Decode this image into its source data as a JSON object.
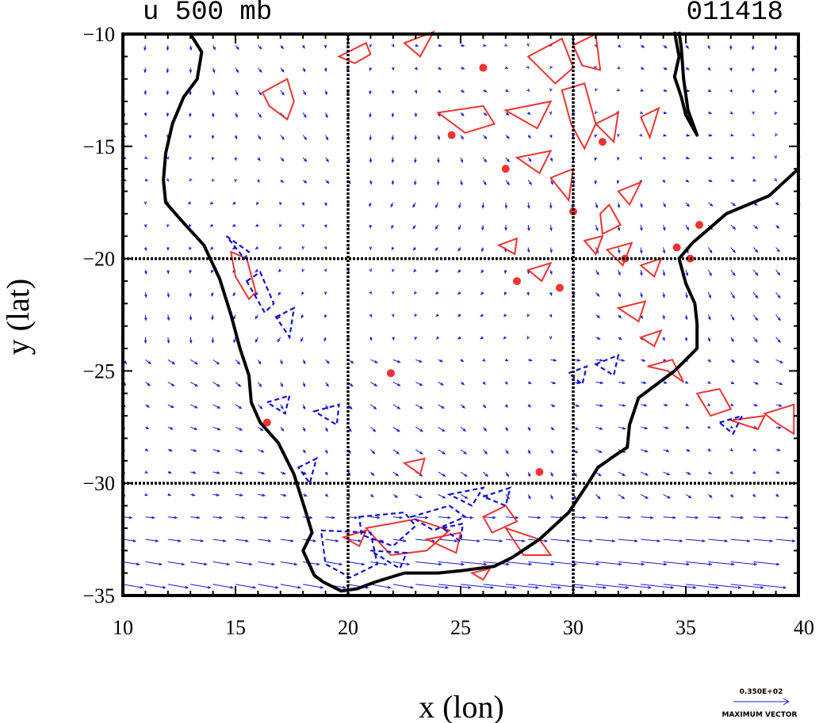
{
  "title": {
    "variable": "u 500 mb",
    "date_code": "011418"
  },
  "axes": {
    "xlabel": "x (lon)",
    "ylabel": "y (lat)",
    "xlim": [
      10,
      40
    ],
    "ylim": [
      -35,
      -10
    ],
    "xticks": [
      "10",
      "15",
      "20",
      "25",
      "30",
      "35",
      "40"
    ],
    "yticks": [
      "−10",
      "−15",
      "−20",
      "−25",
      "−30",
      "−35"
    ],
    "grid_lon": [
      20,
      30
    ],
    "grid_lat": [
      -20,
      -30
    ]
  },
  "legend": {
    "value": "0.350E+02",
    "label": "MAXIMUM VECTOR"
  },
  "colors": {
    "positive_contour": "#ee3333",
    "negative_contour": "#1010cc",
    "vector": "#1a1ad8",
    "coast": "#000000"
  },
  "chart_data": {
    "type": "contour+vector map",
    "title": "u 500 mb",
    "region": "Southern Africa",
    "xlabel": "x (lon)",
    "ylabel": "y (lat)",
    "xlim": [
      10,
      40
    ],
    "ylim": [
      -35,
      -10
    ],
    "coastline_lonlat": [
      [
        13.0,
        -10.0
      ],
      [
        13.5,
        -10.8
      ],
      [
        13.3,
        -12.0
      ],
      [
        12.7,
        -12.8
      ],
      [
        12.2,
        -14.0
      ],
      [
        11.9,
        -15.3
      ],
      [
        11.8,
        -16.5
      ],
      [
        11.9,
        -17.5
      ],
      [
        12.6,
        -18.3
      ],
      [
        13.6,
        -19.4
      ],
      [
        14.3,
        -20.9
      ],
      [
        14.8,
        -22.5
      ],
      [
        15.2,
        -24.0
      ],
      [
        15.6,
        -25.2
      ],
      [
        15.7,
        -26.4
      ],
      [
        16.1,
        -27.3
      ],
      [
        16.9,
        -28.2
      ],
      [
        17.6,
        -29.6
      ],
      [
        18.1,
        -31.2
      ],
      [
        18.4,
        -32.2
      ],
      [
        18.0,
        -33.0
      ],
      [
        18.5,
        -34.1
      ],
      [
        18.9,
        -34.4
      ],
      [
        19.7,
        -34.8
      ],
      [
        20.4,
        -34.7
      ],
      [
        21.2,
        -34.4
      ],
      [
        22.5,
        -34.0
      ],
      [
        24.0,
        -34.0
      ],
      [
        25.0,
        -33.9
      ],
      [
        26.5,
        -33.7
      ],
      [
        27.3,
        -33.3
      ],
      [
        28.5,
        -32.5
      ],
      [
        29.8,
        -31.3
      ],
      [
        30.6,
        -30.1
      ],
      [
        31.1,
        -29.3
      ],
      [
        31.8,
        -28.8
      ],
      [
        32.4,
        -28.4
      ],
      [
        32.5,
        -27.4
      ],
      [
        32.9,
        -26.2
      ],
      [
        34.5,
        -25.0
      ],
      [
        35.5,
        -24.0
      ],
      [
        35.5,
        -22.9
      ],
      [
        35.4,
        -22.0
      ],
      [
        35.0,
        -21.1
      ],
      [
        34.7,
        -20.0
      ],
      [
        35.3,
        -19.3
      ],
      [
        36.8,
        -18.0
      ],
      [
        38.7,
        -17.2
      ],
      [
        40.0,
        -16.0
      ]
    ],
    "lake_outline_lonlat": [
      [
        34.5,
        -9.9
      ],
      [
        34.7,
        -11.0
      ],
      [
        34.5,
        -11.9
      ],
      [
        34.8,
        -12.8
      ],
      [
        35.0,
        -13.6
      ],
      [
        35.5,
        -14.5
      ],
      [
        35.1,
        -13.4
      ],
      [
        34.9,
        -12.0
      ],
      [
        34.8,
        -10.6
      ],
      [
        34.7,
        -9.9
      ]
    ],
    "positive_contours_lonlat": [
      [
        [
          14.8,
          -19.7
        ],
        [
          15.5,
          -20.0
        ],
        [
          15.9,
          -21.5
        ],
        [
          15.6,
          -21.8
        ],
        [
          15.0,
          -20.8
        ],
        [
          14.8,
          -19.7
        ]
      ],
      [
        [
          16.2,
          -12.6
        ],
        [
          17.3,
          -12.0
        ],
        [
          17.6,
          -13.0
        ],
        [
          17.3,
          -13.8
        ],
        [
          16.5,
          -13.2
        ],
        [
          16.2,
          -12.6
        ]
      ],
      [
        [
          19.6,
          -11.0
        ],
        [
          20.8,
          -10.4
        ],
        [
          21.0,
          -10.9
        ],
        [
          20.3,
          -11.3
        ],
        [
          19.6,
          -11.0
        ]
      ],
      [
        [
          22.5,
          -10.4
        ],
        [
          23.8,
          -9.9
        ],
        [
          23.2,
          -11.0
        ],
        [
          22.5,
          -10.4
        ]
      ],
      [
        [
          24.0,
          -13.5
        ],
        [
          26.0,
          -13.2
        ],
        [
          26.5,
          -14.0
        ],
        [
          25.2,
          -14.4
        ],
        [
          24.0,
          -13.5
        ]
      ],
      [
        [
          27.0,
          -13.4
        ],
        [
          29.0,
          -13.0
        ],
        [
          28.4,
          -14.2
        ],
        [
          27.0,
          -13.4
        ]
      ],
      [
        [
          28.0,
          -11.0
        ],
        [
          29.5,
          -10.2
        ],
        [
          30.0,
          -11.5
        ],
        [
          29.2,
          -12.2
        ],
        [
          28.0,
          -11.0
        ]
      ],
      [
        [
          30.0,
          -10.5
        ],
        [
          31.0,
          -10.0
        ],
        [
          31.2,
          -11.6
        ],
        [
          30.4,
          -11.4
        ],
        [
          30.0,
          -10.5
        ]
      ],
      [
        [
          29.5,
          -12.5
        ],
        [
          30.5,
          -12.2
        ],
        [
          31.0,
          -14.0
        ],
        [
          30.5,
          -15.1
        ],
        [
          29.9,
          -14.0
        ],
        [
          29.5,
          -12.5
        ]
      ],
      [
        [
          27.5,
          -15.5
        ],
        [
          29.0,
          -15.2
        ],
        [
          28.5,
          -16.2
        ],
        [
          27.5,
          -15.5
        ]
      ],
      [
        [
          29.0,
          -16.4
        ],
        [
          30.0,
          -16.0
        ],
        [
          29.8,
          -17.4
        ],
        [
          29.0,
          -16.4
        ]
      ],
      [
        [
          31.0,
          -14.0
        ],
        [
          32.0,
          -13.5
        ],
        [
          31.8,
          -14.8
        ],
        [
          31.0,
          -14.0
        ]
      ],
      [
        [
          33.0,
          -13.7
        ],
        [
          33.8,
          -13.3
        ],
        [
          33.4,
          -14.6
        ],
        [
          33.0,
          -13.7
        ]
      ],
      [
        [
          32.0,
          -17.0
        ],
        [
          33.0,
          -16.6
        ],
        [
          32.5,
          -17.6
        ],
        [
          32.0,
          -17.0
        ]
      ],
      [
        [
          31.2,
          -18.0
        ],
        [
          31.6,
          -17.6
        ],
        [
          32.1,
          -18.5
        ],
        [
          31.3,
          -18.9
        ],
        [
          31.2,
          -18.0
        ]
      ],
      [
        [
          30.5,
          -19.2
        ],
        [
          31.3,
          -19.0
        ],
        [
          31.0,
          -19.8
        ],
        [
          30.5,
          -19.2
        ]
      ],
      [
        [
          26.7,
          -19.4
        ],
        [
          27.5,
          -19.1
        ],
        [
          27.4,
          -19.8
        ],
        [
          26.7,
          -19.4
        ]
      ],
      [
        [
          28.0,
          -20.5
        ],
        [
          29.0,
          -20.2
        ],
        [
          28.6,
          -21.0
        ],
        [
          28.0,
          -20.5
        ]
      ],
      [
        [
          31.5,
          -19.6
        ],
        [
          32.6,
          -19.3
        ],
        [
          32.2,
          -20.3
        ],
        [
          31.5,
          -19.6
        ]
      ],
      [
        [
          33.0,
          -20.3
        ],
        [
          33.9,
          -20.0
        ],
        [
          33.6,
          -20.8
        ],
        [
          33.0,
          -20.3
        ]
      ],
      [
        [
          32.0,
          -22.2
        ],
        [
          33.2,
          -21.9
        ],
        [
          32.9,
          -22.8
        ],
        [
          32.0,
          -22.2
        ]
      ],
      [
        [
          33.3,
          -24.8
        ],
        [
          34.4,
          -24.5
        ],
        [
          34.9,
          -25.5
        ],
        [
          34.2,
          -25.0
        ],
        [
          33.3,
          -24.8
        ]
      ],
      [
        [
          33.0,
          -23.5
        ],
        [
          33.9,
          -23.2
        ],
        [
          33.6,
          -23.9
        ],
        [
          33.0,
          -23.5
        ]
      ],
      [
        [
          35.5,
          -26.0
        ],
        [
          36.5,
          -25.8
        ],
        [
          37.0,
          -26.7
        ],
        [
          36.1,
          -27.0
        ],
        [
          35.5,
          -26.0
        ]
      ],
      [
        [
          37.0,
          -27.2
        ],
        [
          38.5,
          -27.0
        ],
        [
          38.2,
          -27.6
        ],
        [
          37.0,
          -27.2
        ]
      ],
      [
        [
          38.5,
          -26.9
        ],
        [
          39.8,
          -26.5
        ],
        [
          39.8,
          -27.8
        ],
        [
          39.0,
          -27.3
        ],
        [
          38.5,
          -26.9
        ]
      ],
      [
        [
          22.5,
          -29.1
        ],
        [
          23.4,
          -28.9
        ],
        [
          23.2,
          -29.6
        ],
        [
          22.5,
          -29.1
        ]
      ],
      [
        [
          20.8,
          -32.0
        ],
        [
          23.0,
          -31.6
        ],
        [
          24.5,
          -32.1
        ],
        [
          23.5,
          -33.0
        ],
        [
          21.9,
          -33.2
        ],
        [
          20.8,
          -32.0
        ]
      ],
      [
        [
          23.5,
          -32.5
        ],
        [
          25.0,
          -32.2
        ],
        [
          24.8,
          -33.1
        ],
        [
          23.5,
          -32.5
        ]
      ],
      [
        [
          26.0,
          -31.5
        ],
        [
          27.0,
          -31.0
        ],
        [
          27.5,
          -31.7
        ],
        [
          26.4,
          -32.2
        ],
        [
          26.0,
          -31.5
        ]
      ],
      [
        [
          27.0,
          -32.0
        ],
        [
          28.5,
          -32.5
        ],
        [
          29.0,
          -33.2
        ],
        [
          27.8,
          -33.2
        ],
        [
          27.0,
          -32.0
        ]
      ],
      [
        [
          19.8,
          -32.4
        ],
        [
          20.8,
          -32.1
        ],
        [
          20.5,
          -32.8
        ],
        [
          19.8,
          -32.4
        ]
      ],
      [
        [
          25.5,
          -34.0
        ],
        [
          26.3,
          -33.8
        ],
        [
          26.0,
          -34.3
        ],
        [
          25.5,
          -34.0
        ]
      ]
    ],
    "negative_contours_lonlat": [
      [
        [
          14.6,
          -19.0
        ],
        [
          15.6,
          -19.7
        ],
        [
          15.4,
          -20.0
        ],
        [
          14.6,
          -19.0
        ]
      ],
      [
        [
          15.5,
          -21.0
        ],
        [
          16.1,
          -20.6
        ],
        [
          16.7,
          -22.0
        ],
        [
          16.3,
          -22.4
        ],
        [
          15.5,
          -21.0
        ]
      ],
      [
        [
          16.8,
          -22.6
        ],
        [
          17.6,
          -22.2
        ],
        [
          17.4,
          -23.5
        ],
        [
          16.8,
          -22.6
        ]
      ],
      [
        [
          16.4,
          -26.4
        ],
        [
          17.4,
          -26.1
        ],
        [
          17.2,
          -26.9
        ],
        [
          16.4,
          -26.4
        ]
      ],
      [
        [
          18.5,
          -26.8
        ],
        [
          19.6,
          -26.5
        ],
        [
          19.5,
          -27.4
        ],
        [
          18.5,
          -26.8
        ]
      ],
      [
        [
          17.8,
          -29.3
        ],
        [
          18.6,
          -28.9
        ],
        [
          18.3,
          -30.0
        ],
        [
          17.8,
          -29.3
        ]
      ],
      [
        [
          31.0,
          -24.7
        ],
        [
          32.0,
          -24.3
        ],
        [
          31.8,
          -25.2
        ],
        [
          31.0,
          -24.7
        ]
      ],
      [
        [
          29.8,
          -25.1
        ],
        [
          30.6,
          -24.8
        ],
        [
          30.4,
          -25.6
        ],
        [
          29.8,
          -25.1
        ]
      ],
      [
        [
          36.5,
          -27.3
        ],
        [
          37.5,
          -27.0
        ],
        [
          37.1,
          -27.8
        ],
        [
          36.5,
          -27.3
        ]
      ],
      [
        [
          18.8,
          -32.1
        ],
        [
          21.0,
          -32.2
        ],
        [
          21.3,
          -33.6
        ],
        [
          20.1,
          -34.2
        ],
        [
          19.0,
          -33.6
        ],
        [
          18.8,
          -32.1
        ]
      ],
      [
        [
          20.5,
          -31.5
        ],
        [
          22.5,
          -31.3
        ],
        [
          23.0,
          -31.9
        ],
        [
          22.0,
          -32.8
        ],
        [
          20.6,
          -32.3
        ],
        [
          20.5,
          -31.5
        ]
      ],
      [
        [
          22.8,
          -31.5
        ],
        [
          24.5,
          -31.0
        ],
        [
          25.2,
          -31.5
        ],
        [
          23.8,
          -32.1
        ],
        [
          22.8,
          -31.5
        ]
      ],
      [
        [
          24.5,
          -30.5
        ],
        [
          26.0,
          -30.2
        ],
        [
          25.5,
          -31.0
        ],
        [
          24.5,
          -30.5
        ]
      ],
      [
        [
          24.2,
          -32.0
        ],
        [
          25.1,
          -31.8
        ],
        [
          25.0,
          -32.6
        ],
        [
          24.2,
          -32.0
        ]
      ],
      [
        [
          26.0,
          -30.6
        ],
        [
          27.2,
          -30.2
        ],
        [
          27.0,
          -31.0
        ],
        [
          26.0,
          -30.6
        ]
      ],
      [
        [
          21.0,
          -33.0
        ],
        [
          22.6,
          -33.1
        ],
        [
          22.3,
          -33.8
        ],
        [
          21.0,
          -33.0
        ]
      ]
    ],
    "vector_field": "uniform lon/lat grid of wind vectors; weak westerly flow in the north, strong westerly jet (up to 35 m/s) along 32-35S",
    "max_vector": "0.350E+02"
  }
}
